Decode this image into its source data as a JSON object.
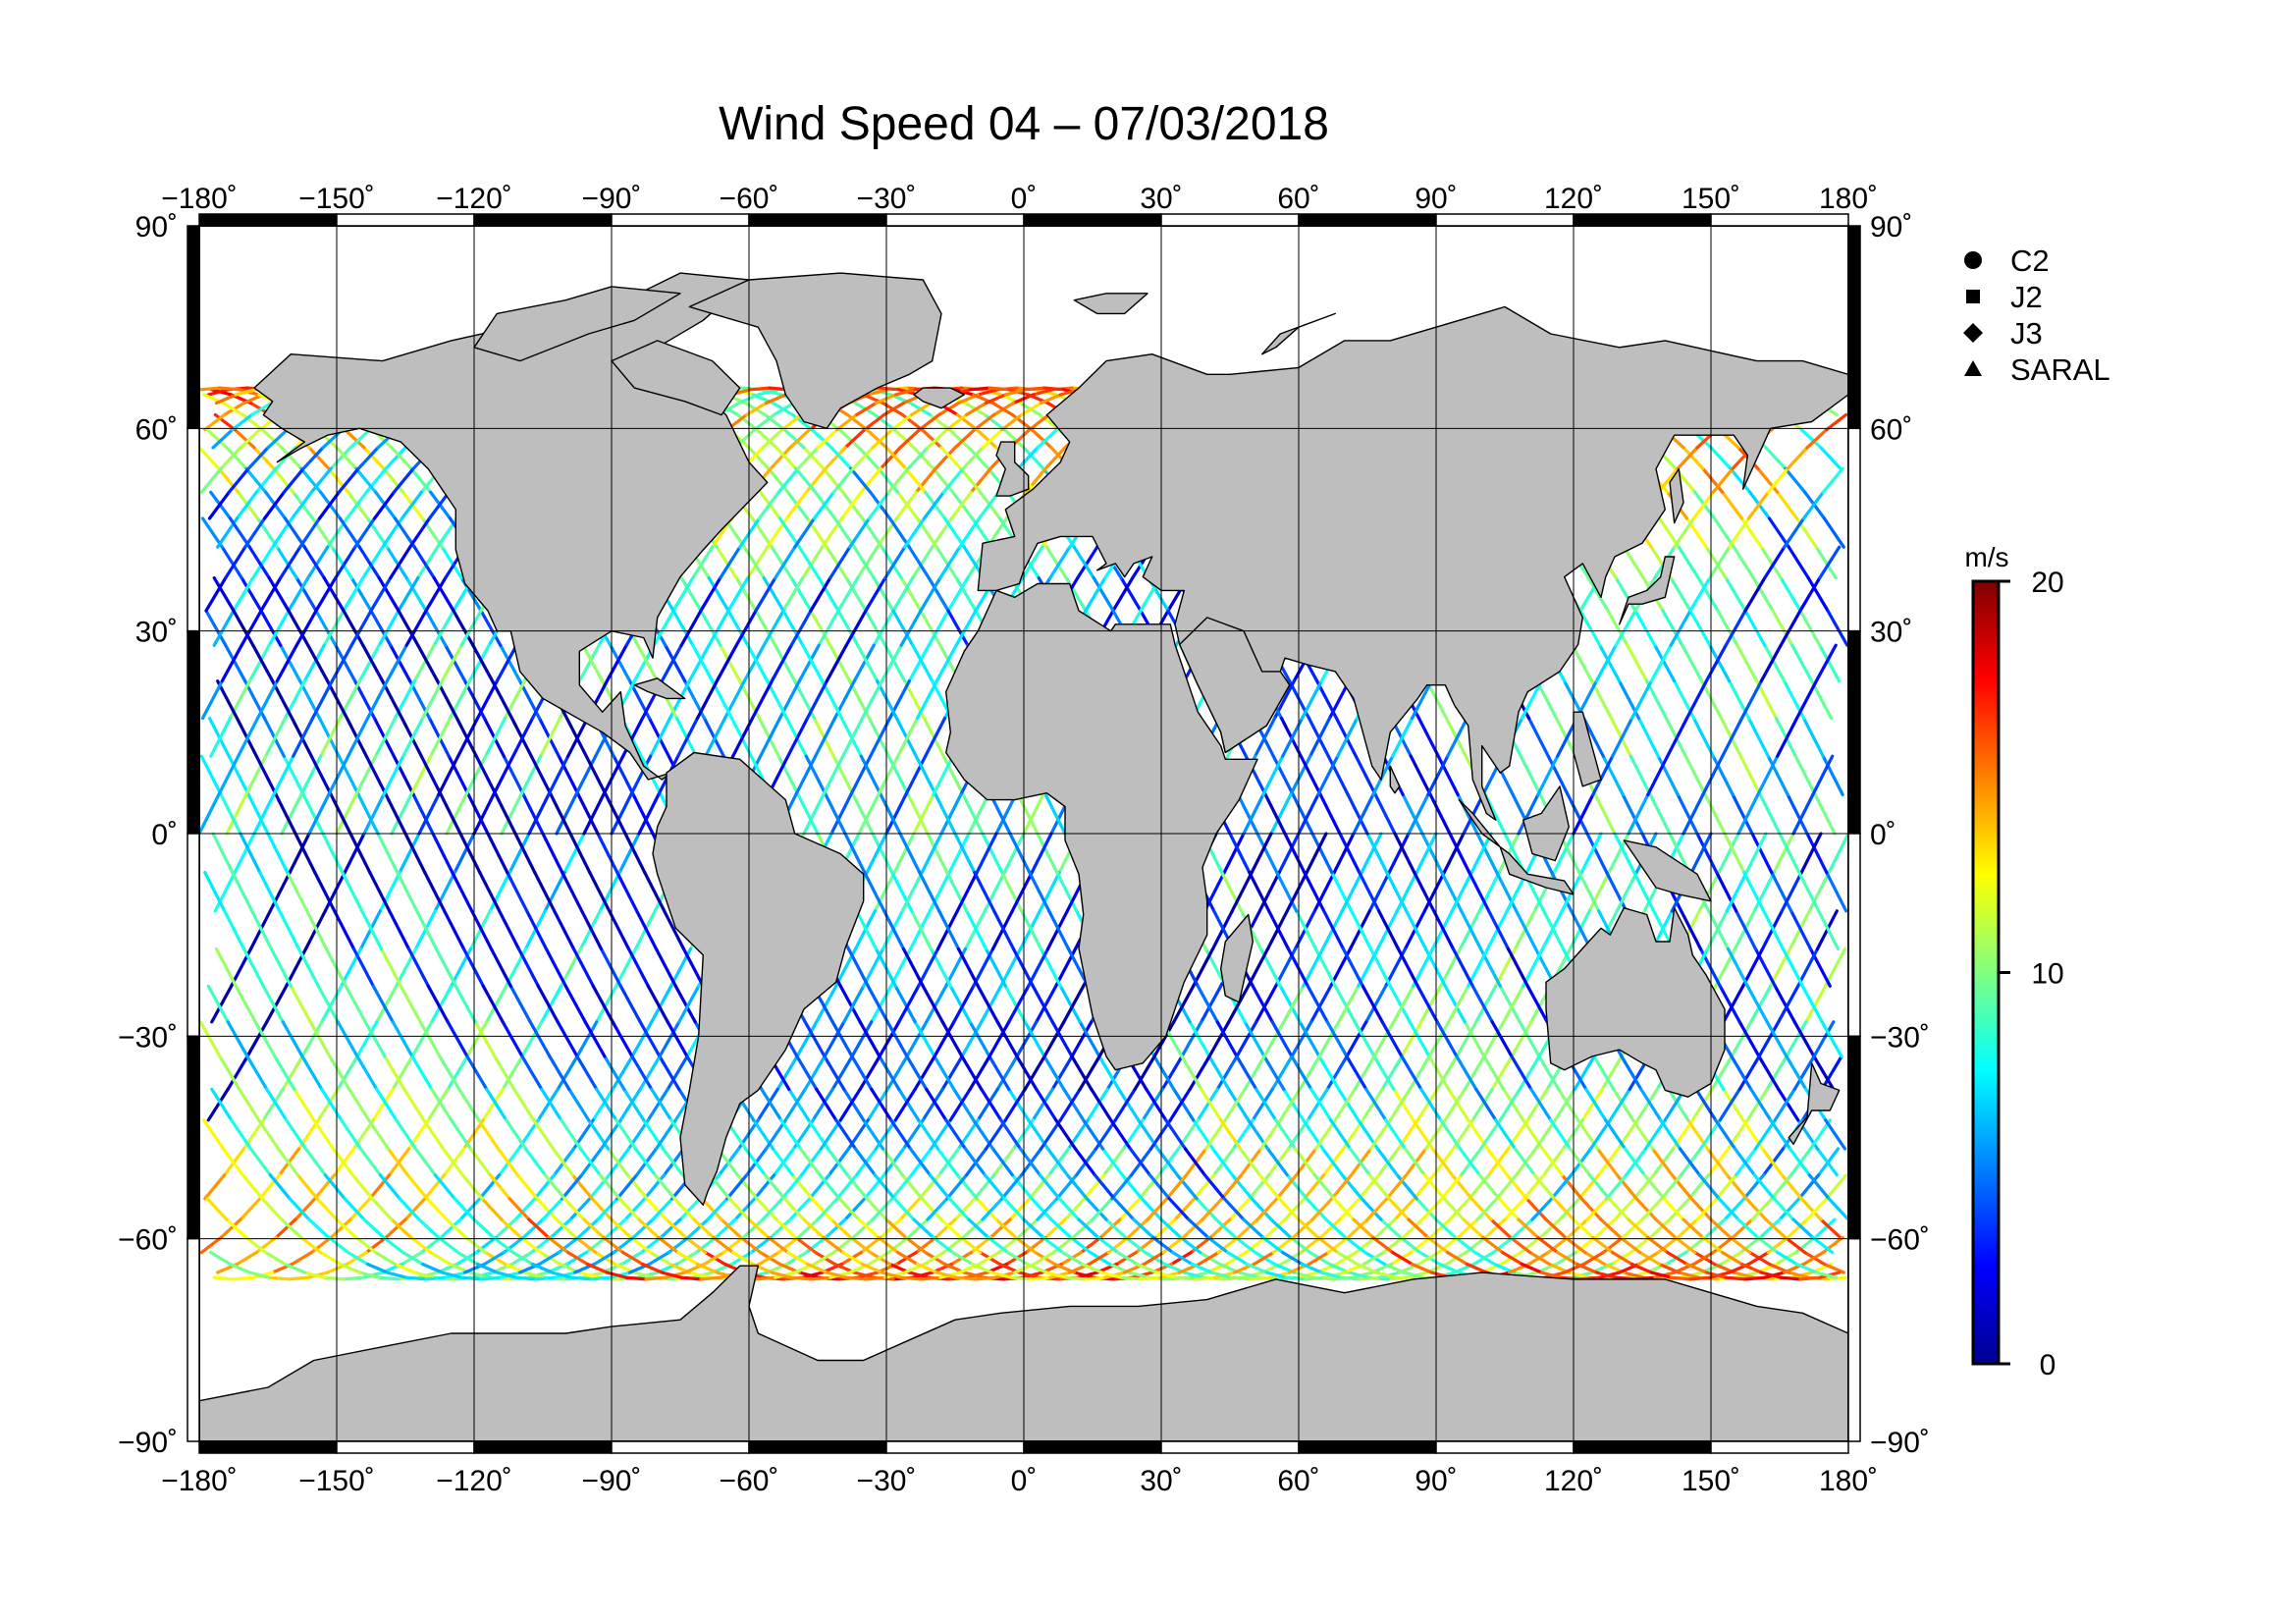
{
  "title": "Wind Speed 04 – 07/03/2018",
  "map": {
    "lon_range": [
      -180,
      180
    ],
    "lat_range": [
      -90,
      90
    ],
    "lon_ticks": [
      {
        "v": -180,
        "label": "−180˚"
      },
      {
        "v": -150,
        "label": "−150˚"
      },
      {
        "v": -120,
        "label": "−120˚"
      },
      {
        "v": -90,
        "label": "−90˚"
      },
      {
        "v": -60,
        "label": "−60˚"
      },
      {
        "v": -30,
        "label": "−30˚"
      },
      {
        "v": 0,
        "label": "0˚"
      },
      {
        "v": 30,
        "label": "30˚"
      },
      {
        "v": 60,
        "label": "60˚"
      },
      {
        "v": 90,
        "label": "90˚"
      },
      {
        "v": 120,
        "label": "120˚"
      },
      {
        "v": 150,
        "label": "150˚"
      },
      {
        "v": 180,
        "label": "180˚"
      }
    ],
    "lat_ticks": [
      {
        "v": 90,
        "label": "90˚"
      },
      {
        "v": 60,
        "label": "60˚"
      },
      {
        "v": 30,
        "label": "30˚"
      },
      {
        "v": 0,
        "label": "0˚"
      },
      {
        "v": -30,
        "label": "−30˚"
      },
      {
        "v": -60,
        "label": "−60˚"
      },
      {
        "v": -90,
        "label": "−90˚"
      }
    ],
    "grid": true,
    "land_color": "#bebebe",
    "ocean_color": "#ffffff",
    "track_coverage_lat": [
      -66,
      66
    ]
  },
  "legend": {
    "placement": "top-right",
    "items": [
      {
        "label": "C2",
        "symbol": "circle-icon"
      },
      {
        "label": "J2",
        "symbol": "square-icon"
      },
      {
        "label": "J3",
        "symbol": "diamond-icon"
      },
      {
        "label": "SARAL",
        "symbol": "triangle-icon"
      }
    ]
  },
  "colorbar": {
    "unit": "m/s",
    "min": 0,
    "max": 20,
    "tick_labels": [
      {
        "v": 20,
        "label": "20"
      },
      {
        "v": 10,
        "label": "10"
      },
      {
        "v": 0,
        "label": "0"
      }
    ],
    "colormap": [
      "#00008f",
      "#0000ff",
      "#0080ff",
      "#00ffff",
      "#80ff80",
      "#ffff00",
      "#ff8000",
      "#ff0000",
      "#800000"
    ]
  },
  "chart_data": {
    "type": "scatter",
    "title": "Wind Speed 04 – 07/03/2018",
    "xlabel": "",
    "ylabel": "",
    "xlim": [
      -180,
      180
    ],
    "ylim": [
      -90,
      90
    ],
    "series": [
      {
        "name": "C2",
        "values": []
      },
      {
        "name": "J2",
        "values": []
      },
      {
        "name": "J3",
        "values": []
      },
      {
        "name": "SARAL",
        "values": []
      }
    ],
    "color_scale": {
      "unit": "m/s",
      "min": 0,
      "max": 20
    },
    "grid": true,
    "legend": "top-right"
  }
}
